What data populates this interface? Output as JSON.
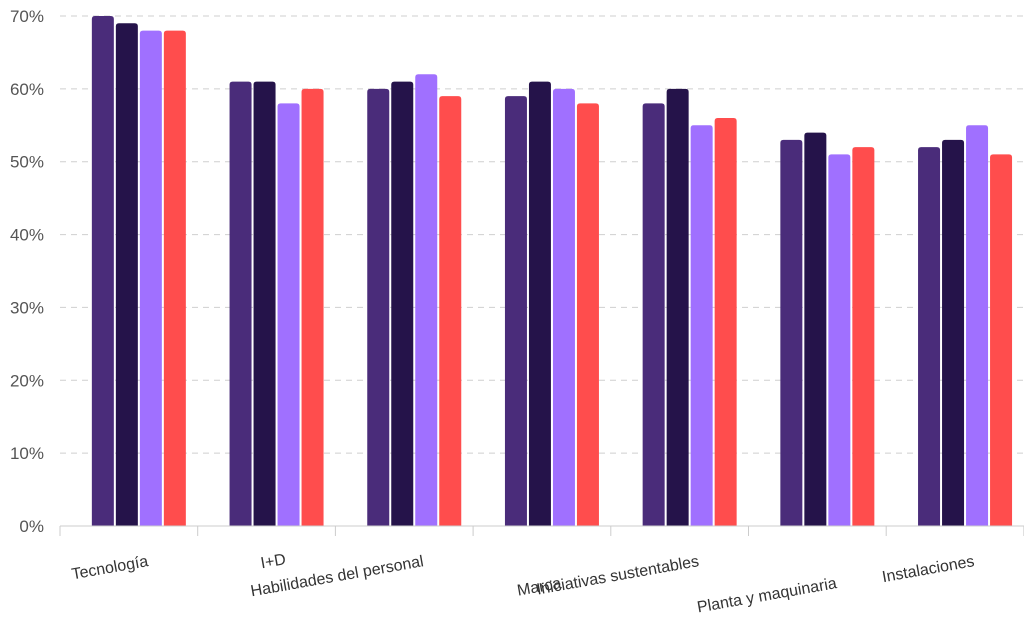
{
  "chart_data": {
    "type": "bar",
    "categories": [
      "Tecnología",
      "I+D",
      "Habilidades del personal",
      "Marca",
      "Iniciativas sustentables",
      "Planta y maquinaria",
      "Instalaciones"
    ],
    "series": [
      {
        "color": "#4a2c7a",
        "values": [
          70,
          61,
          60,
          59,
          58,
          53,
          52
        ]
      },
      {
        "color": "#25134a",
        "values": [
          69,
          61,
          61,
          61,
          60,
          54,
          53
        ]
      },
      {
        "color": "#a070ff",
        "values": [
          68,
          58,
          62,
          60,
          55,
          51,
          55
        ]
      },
      {
        "color": "#ff4d4d",
        "values": [
          68,
          60,
          59,
          58,
          56,
          52,
          51
        ]
      }
    ],
    "yticks": [
      "0%",
      "10%",
      "20%",
      "30%",
      "40%",
      "50%",
      "60%",
      "70%"
    ],
    "ylim": [
      0,
      70
    ],
    "grid": true,
    "title": "",
    "xlabel": "",
    "ylabel": ""
  }
}
